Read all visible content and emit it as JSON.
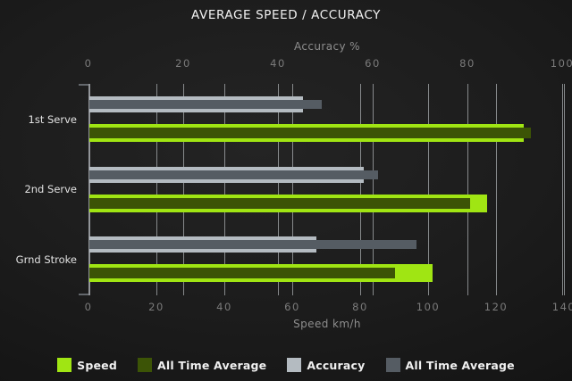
{
  "title": "AVERAGE SPEED / ACCURACY",
  "colors": {
    "background": "#1e1e1e",
    "speed": "#a0e513",
    "speed_all_time_avg": "#3c5406",
    "accuracy": "#b4bbc1",
    "accuracy_all_time_avg": "#555c63",
    "gridline": "#ccd2d6",
    "tick_text": "#7b7b7b",
    "axis_label_text": "#8d8d8d",
    "category_text": "#e2e2e2",
    "title_text": "#f2f2f2"
  },
  "chart_data": {
    "type": "bar",
    "orientation": "horizontal",
    "title": "AVERAGE SPEED / ACCURACY",
    "categories": [
      "1st Serve",
      "2nd Serve",
      "Grnd Stroke"
    ],
    "grid": true,
    "legend_position": "bottom",
    "axes": {
      "top": {
        "label": "Accuracy %",
        "min": 0,
        "max": 100,
        "ticks": [
          0,
          20,
          40,
          60,
          80,
          100
        ]
      },
      "bottom": {
        "label": "Speed km/h",
        "min": 0,
        "max": 140,
        "ticks": [
          0,
          20,
          40,
          60,
          80,
          100,
          120,
          140
        ]
      }
    },
    "series": [
      {
        "name": "Speed",
        "axis": "bottom",
        "role": "outer",
        "color": "#a0e513",
        "values": [
          128,
          117,
          101
        ]
      },
      {
        "name": "All Time Average",
        "axis": "bottom",
        "role": "inner",
        "color": "#3c5406",
        "values": [
          130,
          112,
          90
        ]
      },
      {
        "name": "Accuracy",
        "axis": "top",
        "role": "outer",
        "color": "#b4bbc1",
        "values": [
          45,
          58,
          48
        ]
      },
      {
        "name": "All Time Average",
        "axis": "top",
        "role": "inner",
        "color": "#555c63",
        "values": [
          49,
          61,
          69
        ]
      }
    ],
    "legend": [
      {
        "label": "Speed",
        "color": "#a0e513"
      },
      {
        "label": "All Time Average",
        "color": "#3c5406"
      },
      {
        "label": "Accuracy",
        "color": "#b4bbc1"
      },
      {
        "label": "All Time Average",
        "color": "#555c63"
      }
    ]
  }
}
